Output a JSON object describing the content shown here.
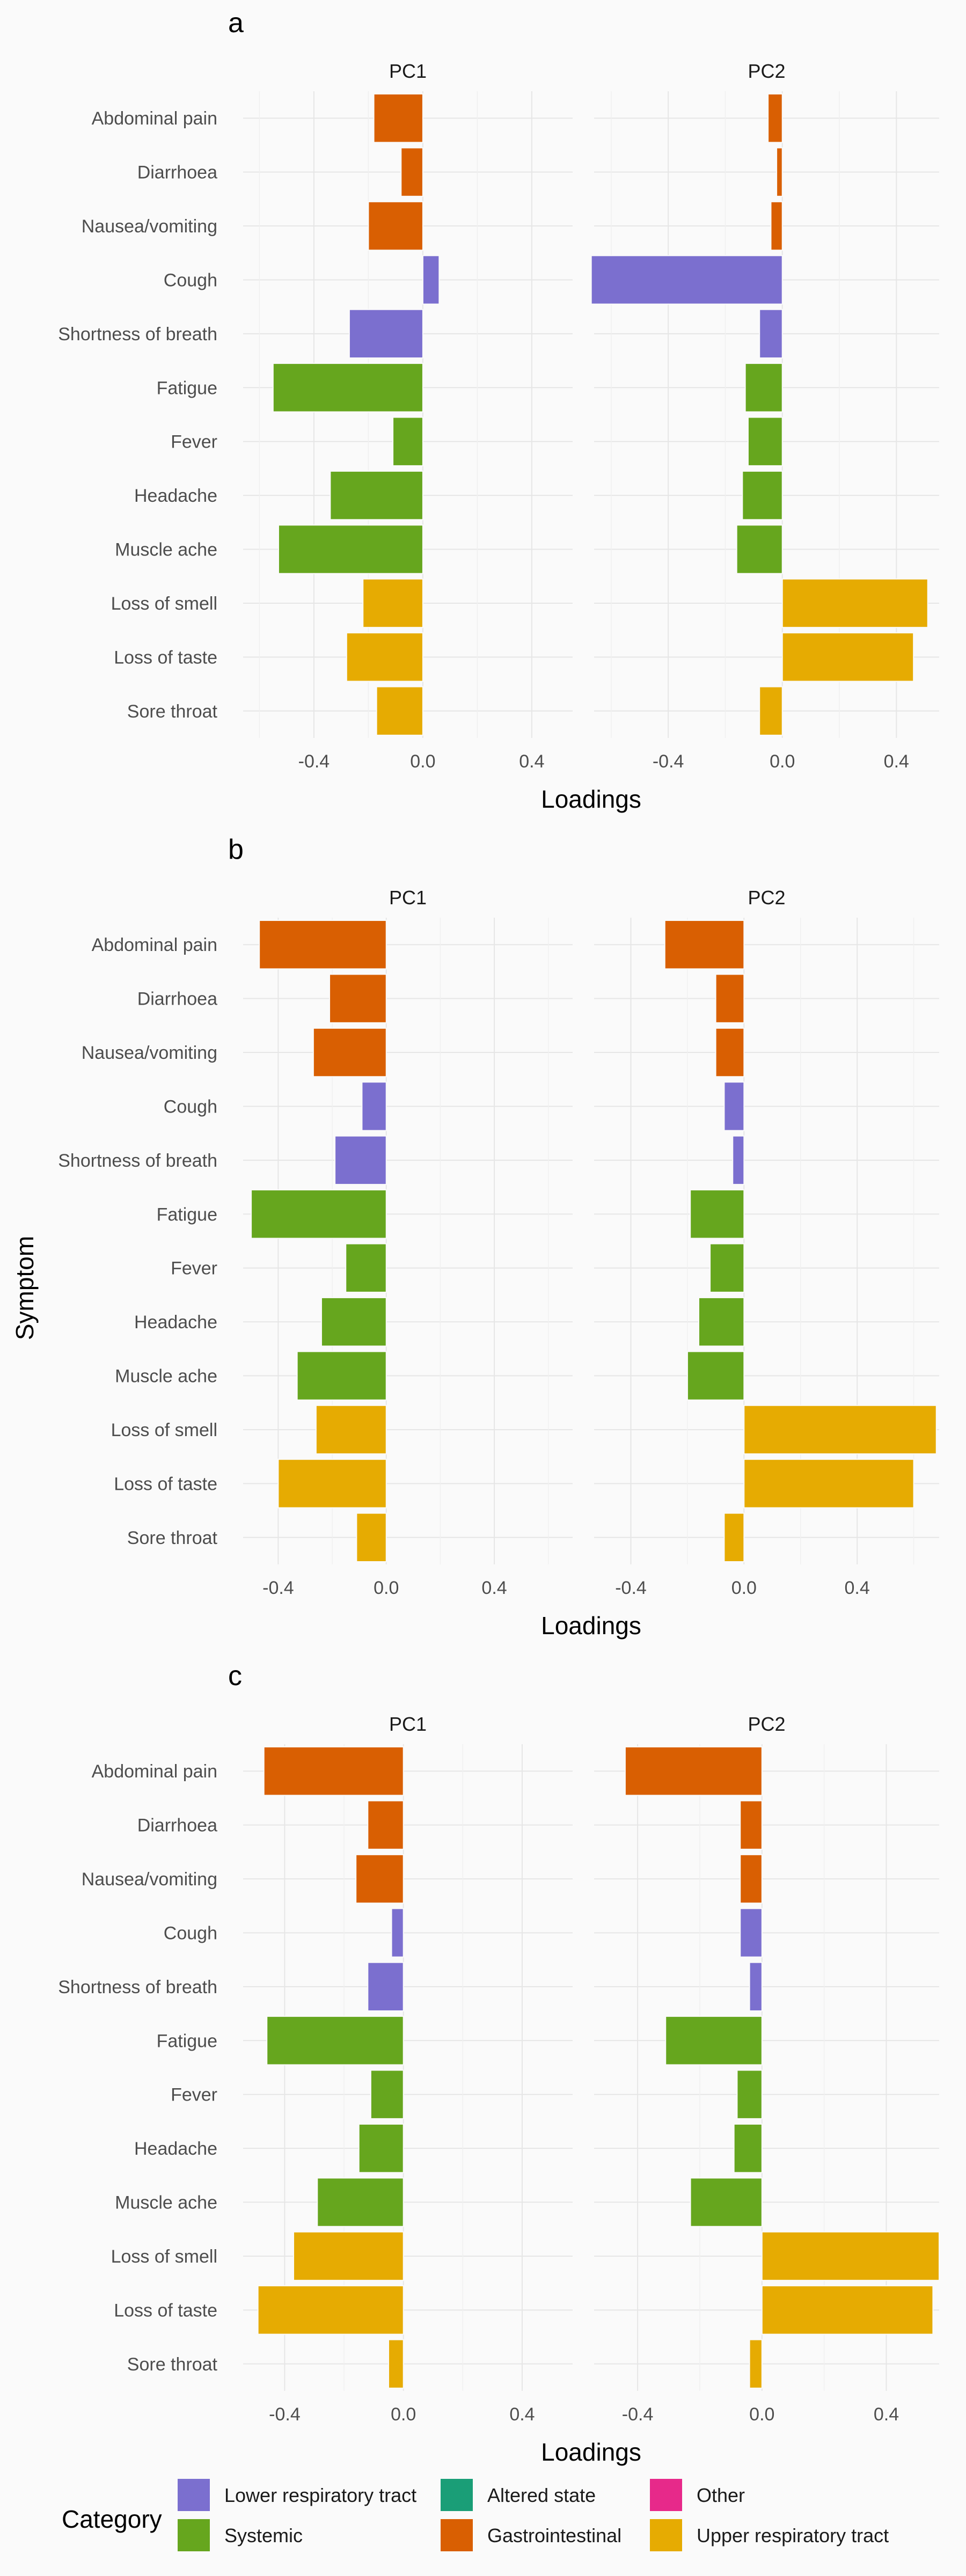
{
  "figure": {
    "y_axis_title": "Symptom",
    "x_axis_title": "Loadings",
    "legend": {
      "title": "Category",
      "items": [
        {
          "label": "Lower respiratory tract",
          "color": "#7b6fcf"
        },
        {
          "label": "Altered state",
          "color": "#1a9e77"
        },
        {
          "label": "Other",
          "color": "#e7298a"
        },
        {
          "label": "Systemic",
          "color": "#66a61e"
        },
        {
          "label": "Gastrointestinal",
          "color": "#d95f02"
        },
        {
          "label": "Upper respiratory tract",
          "color": "#e6ab02"
        }
      ]
    }
  },
  "chart_data": [
    {
      "type": "bar",
      "panel": "a",
      "orientation": "horizontal",
      "categories": [
        "Abdominal pain",
        "Diarrhoea",
        "Nausea/vomiting",
        "Cough",
        "Shortness of breath",
        "Fatigue",
        "Fever",
        "Headache",
        "Muscle ache",
        "Loss of smell",
        "Loss of taste",
        "Sore throat"
      ],
      "category_groups": [
        "Gastrointestinal",
        "Gastrointestinal",
        "Gastrointestinal",
        "Lower respiratory tract",
        "Lower respiratory tract",
        "Systemic",
        "Systemic",
        "Systemic",
        "Systemic",
        "Upper respiratory tract",
        "Upper respiratory tract",
        "Upper respiratory tract"
      ],
      "series": [
        {
          "name": "PC1",
          "values": [
            -0.18,
            -0.08,
            -0.2,
            0.06,
            -0.27,
            -0.55,
            -0.11,
            -0.34,
            -0.53,
            -0.22,
            -0.28,
            -0.17
          ]
        },
        {
          "name": "PC2",
          "values": [
            -0.05,
            -0.02,
            -0.04,
            -0.67,
            -0.08,
            -0.13,
            -0.12,
            -0.14,
            -0.16,
            0.51,
            0.46,
            -0.08
          ]
        }
      ],
      "xlabel": "Loadings",
      "ylabel": "Symptom",
      "xlim": [
        -0.66,
        0.55
      ],
      "xticks": [
        "-0.4",
        "0.0",
        "0.4"
      ]
    },
    {
      "type": "bar",
      "panel": "b",
      "orientation": "horizontal",
      "categories": [
        "Abdominal pain",
        "Diarrhoea",
        "Nausea/vomiting",
        "Cough",
        "Shortness of breath",
        "Fatigue",
        "Fever",
        "Headache",
        "Muscle ache",
        "Loss of smell",
        "Loss of taste",
        "Sore throat"
      ],
      "category_groups": [
        "Gastrointestinal",
        "Gastrointestinal",
        "Gastrointestinal",
        "Lower respiratory tract",
        "Lower respiratory tract",
        "Systemic",
        "Systemic",
        "Systemic",
        "Systemic",
        "Upper respiratory tract",
        "Upper respiratory tract",
        "Upper respiratory tract"
      ],
      "series": [
        {
          "name": "PC1",
          "values": [
            -0.47,
            -0.21,
            -0.27,
            -0.09,
            -0.19,
            -0.5,
            -0.15,
            -0.24,
            -0.33,
            -0.26,
            -0.4,
            -0.11
          ]
        },
        {
          "name": "PC2",
          "values": [
            -0.28,
            -0.1,
            -0.1,
            -0.07,
            -0.04,
            -0.19,
            -0.12,
            -0.16,
            -0.2,
            0.68,
            0.6,
            -0.07
          ]
        }
      ],
      "xlabel": "Loadings",
      "ylabel": "Symptom",
      "xlim": [
        -0.53,
        0.69
      ],
      "xticks": [
        "-0.4",
        "0.0",
        "0.4"
      ]
    },
    {
      "type": "bar",
      "panel": "c",
      "orientation": "horizontal",
      "categories": [
        "Abdominal pain",
        "Diarrhoea",
        "Nausea/vomiting",
        "Cough",
        "Shortness of breath",
        "Fatigue",
        "Fever",
        "Headache",
        "Muscle ache",
        "Loss of smell",
        "Loss of taste",
        "Sore throat"
      ],
      "category_groups": [
        "Gastrointestinal",
        "Gastrointestinal",
        "Gastrointestinal",
        "Lower respiratory tract",
        "Lower respiratory tract",
        "Systemic",
        "Systemic",
        "Systemic",
        "Systemic",
        "Upper respiratory tract",
        "Upper respiratory tract",
        "Upper respiratory tract"
      ],
      "series": [
        {
          "name": "PC1",
          "values": [
            -0.47,
            -0.12,
            -0.16,
            -0.04,
            -0.12,
            -0.46,
            -0.11,
            -0.15,
            -0.29,
            -0.37,
            -0.49,
            -0.05
          ]
        },
        {
          "name": "PC2",
          "values": [
            -0.44,
            -0.07,
            -0.07,
            -0.07,
            -0.04,
            -0.31,
            -0.08,
            -0.09,
            -0.23,
            0.57,
            0.55,
            -0.04
          ]
        }
      ],
      "xlabel": "Loadings",
      "ylabel": "Symptom",
      "xlim": [
        -0.54,
        0.57
      ],
      "xticks": [
        "-0.4",
        "0.0",
        "0.4"
      ]
    }
  ]
}
